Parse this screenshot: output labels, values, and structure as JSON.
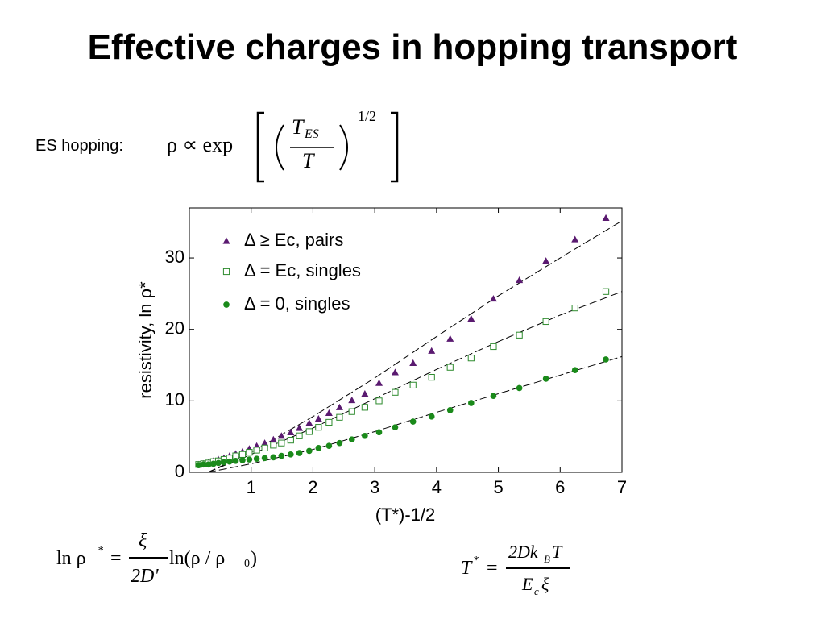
{
  "slide_title": "Effective charges in hopping transport",
  "es_formula": {
    "label": "ES hopping:",
    "lhs": "ρ ∝ exp",
    "num": "T",
    "num_sub": "ES",
    "den": "T",
    "exponent": "1/2"
  },
  "formula_left": {
    "lhs": "ln ρ",
    "lhs_sup": "*",
    "eq": "=",
    "num": "ξ",
    "den": "2D'",
    "rhs": "ln(ρ / ρ",
    "rhs_sub": "0",
    "rhs_end": ")"
  },
  "formula_right": {
    "lhs": "T",
    "lhs_sup": "*",
    "eq": "=",
    "num": "2Dk",
    "num_sub": "B",
    "num_end": "T",
    "den": "E",
    "den_sub": "c",
    "den_end": "ξ"
  },
  "chart_data": {
    "type": "scatter",
    "x_label": "(T*)-1/2",
    "y_label": "resistivity, ln ρ*",
    "xlim": [
      0,
      7
    ],
    "ylim": [
      0,
      37
    ],
    "xticks": [
      1,
      2,
      3,
      4,
      5,
      6,
      7
    ],
    "yticks": [
      0,
      10,
      20,
      30
    ],
    "legend": "upper left",
    "x": [
      0.15,
      0.23,
      0.31,
      0.39,
      0.47,
      0.56,
      0.65,
      0.75,
      0.86,
      0.97,
      1.09,
      1.22,
      1.36,
      1.49,
      1.64,
      1.78,
      1.94,
      2.09,
      2.26,
      2.43,
      2.63,
      2.84,
      3.07,
      3.33,
      3.62,
      3.92,
      4.22,
      4.56,
      4.92,
      5.34,
      5.77,
      6.24,
      6.74
    ],
    "series": [
      {
        "name": "Δ ≥ Ec, pairs",
        "color": "#5a1a70",
        "marker": "triangle",
        "values": [
          1.1,
          1.2,
          1.4,
          1.6,
          1.8,
          2.0,
          2.3,
          2.6,
          2.9,
          3.3,
          3.7,
          4.1,
          4.6,
          5.1,
          5.6,
          6.2,
          6.9,
          7.5,
          8.3,
          9.1,
          10.1,
          11.0,
          12.5,
          14.0,
          15.3,
          17.0,
          18.7,
          21.5,
          24.3,
          26.9,
          29.6,
          32.6,
          35.6
        ]
      },
      {
        "name": "Δ = Ec, singles",
        "color": "#2e8b2e",
        "marker": "square",
        "values": [
          1.1,
          1.2,
          1.3,
          1.5,
          1.6,
          1.8,
          2.0,
          2.3,
          2.5,
          2.8,
          3.1,
          3.4,
          3.8,
          4.1,
          4.5,
          5.1,
          5.7,
          6.3,
          7.0,
          7.7,
          8.5,
          9.1,
          10.0,
          11.2,
          12.2,
          13.3,
          14.7,
          16.0,
          17.6,
          19.2,
          21.1,
          23.0,
          25.3
        ]
      },
      {
        "name": "Δ = 0, singles",
        "color": "#1a8a1a",
        "marker": "circle",
        "values": [
          1.0,
          1.1,
          1.1,
          1.2,
          1.3,
          1.4,
          1.5,
          1.6,
          1.7,
          1.8,
          1.9,
          2.0,
          2.1,
          2.3,
          2.5,
          2.7,
          3.0,
          3.4,
          3.7,
          4.1,
          4.6,
          5.1,
          5.6,
          6.3,
          7.1,
          7.8,
          8.7,
          9.7,
          10.7,
          11.8,
          13.1,
          14.3,
          15.8
        ]
      }
    ],
    "fits": [
      {
        "x": [
          0.3,
          1,
          2,
          3,
          4,
          5,
          6,
          7
        ],
        "values": [
          0,
          2.8,
          7.8,
          13.2,
          19.0,
          24.7,
          30.0,
          35.2
        ]
      },
      {
        "x": [
          0.3,
          1,
          2,
          3,
          4,
          5,
          6,
          7
        ],
        "values": [
          0,
          2.5,
          6.2,
          10.3,
          14.4,
          18.3,
          22.0,
          25.3
        ]
      },
      {
        "x": [
          0.3,
          1,
          2,
          3,
          4,
          5,
          6,
          7
        ],
        "values": [
          0,
          1.2,
          3.2,
          5.7,
          8.4,
          11.0,
          13.6,
          16.2
        ]
      }
    ]
  }
}
